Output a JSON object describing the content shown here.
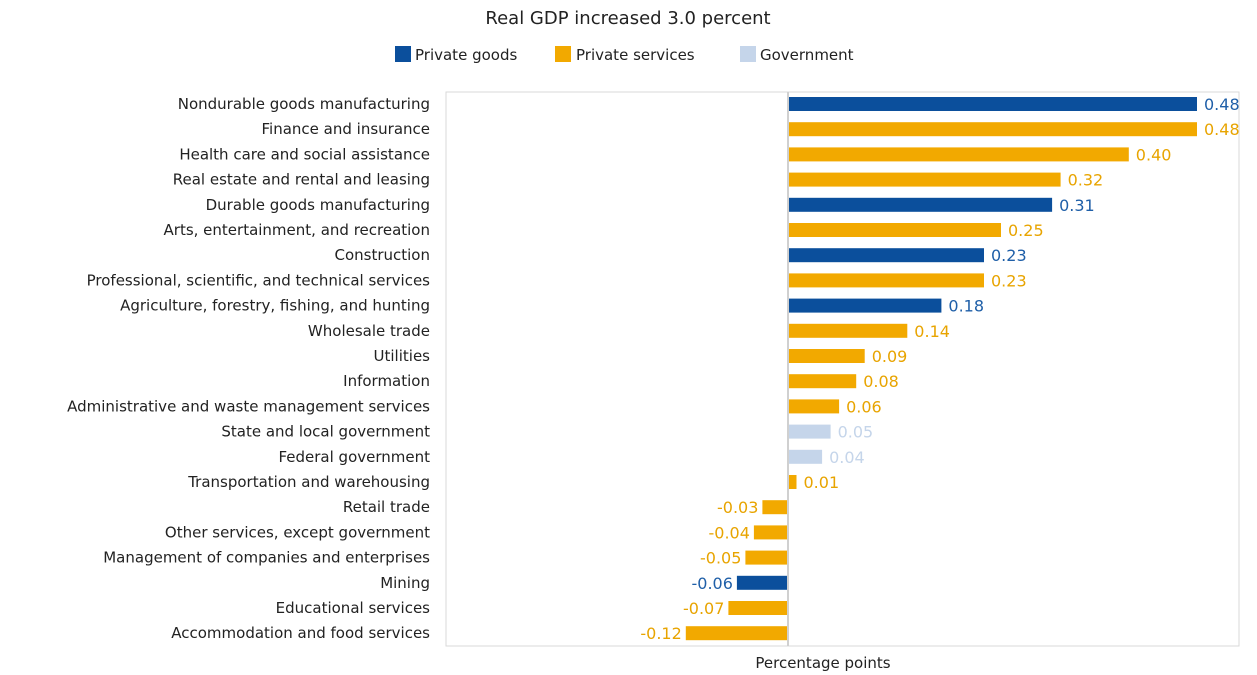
{
  "chart_data": {
    "type": "bar",
    "orientation": "horizontal",
    "title": "Real GDP increased 3.0 percent",
    "xlabel": "Percentage points",
    "ylabel": "",
    "xlim": [
      -0.12,
      0.48
    ],
    "grid": false,
    "legend_position": "top-center",
    "legend": [
      {
        "name": "Private goods",
        "color": "#0b4f9c"
      },
      {
        "name": "Private services",
        "color": "#f2a900"
      },
      {
        "name": "Government",
        "color": "#c5d5ea"
      }
    ],
    "bars": [
      {
        "category": "Nondurable goods manufacturing",
        "value": 0.48,
        "label": "0.48",
        "group": "Private goods"
      },
      {
        "category": "Finance and insurance",
        "value": 0.48,
        "label": "0.48",
        "group": "Private services"
      },
      {
        "category": "Health care and social assistance",
        "value": 0.4,
        "label": "0.40",
        "group": "Private services"
      },
      {
        "category": "Real estate and rental and leasing",
        "value": 0.32,
        "label": "0.32",
        "group": "Private services"
      },
      {
        "category": "Durable goods manufacturing",
        "value": 0.31,
        "label": "0.31",
        "group": "Private goods"
      },
      {
        "category": "Arts, entertainment, and recreation",
        "value": 0.25,
        "label": "0.25",
        "group": "Private services"
      },
      {
        "category": "Construction",
        "value": 0.23,
        "label": "0.23",
        "group": "Private goods"
      },
      {
        "category": "Professional, scientific, and technical services",
        "value": 0.23,
        "label": "0.23",
        "group": "Private services"
      },
      {
        "category": "Agriculture, forestry, fishing, and hunting",
        "value": 0.18,
        "label": "0.18",
        "group": "Private goods"
      },
      {
        "category": "Wholesale trade",
        "value": 0.14,
        "label": "0.14",
        "group": "Private services"
      },
      {
        "category": "Utilities",
        "value": 0.09,
        "label": "0.09",
        "group": "Private services"
      },
      {
        "category": "Information",
        "value": 0.08,
        "label": "0.08",
        "group": "Private services"
      },
      {
        "category": "Administrative and waste management services",
        "value": 0.06,
        "label": "0.06",
        "group": "Private services"
      },
      {
        "category": "State and local government",
        "value": 0.05,
        "label": "0.05",
        "group": "Government"
      },
      {
        "category": "Federal government",
        "value": 0.04,
        "label": "0.04",
        "group": "Government"
      },
      {
        "category": "Transportation and warehousing",
        "value": 0.01,
        "label": "0.01",
        "group": "Private services"
      },
      {
        "category": "Retail trade",
        "value": -0.03,
        "label": "-0.03",
        "group": "Private services"
      },
      {
        "category": "Other services, except government",
        "value": -0.04,
        "label": "-0.04",
        "group": "Private services"
      },
      {
        "category": "Management of companies and enterprises",
        "value": -0.05,
        "label": "-0.05",
        "group": "Private services"
      },
      {
        "category": "Mining",
        "value": -0.06,
        "label": "-0.06",
        "group": "Private goods"
      },
      {
        "category": "Educational services",
        "value": -0.07,
        "label": "-0.07",
        "group": "Private services"
      },
      {
        "category": "Accommodation and food services",
        "value": -0.12,
        "label": "-0.12",
        "group": "Private services"
      }
    ]
  }
}
